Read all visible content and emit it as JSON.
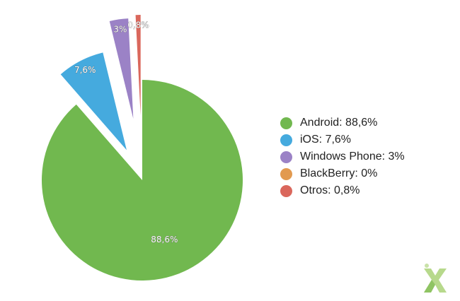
{
  "chart_data": {
    "type": "pie",
    "slices": [
      {
        "name": "Android",
        "value": 88.6,
        "label": "88,6%",
        "color": "#71b84f",
        "explode": false
      },
      {
        "name": "iOS",
        "value": 7.6,
        "label": "7,6%",
        "color": "#45aade",
        "explode": true
      },
      {
        "name": "Windows Phone",
        "value": 3,
        "label": "3%",
        "color": "#9b82c6",
        "explode": true
      },
      {
        "name": "BlackBerry",
        "value": 0,
        "label": "",
        "color": "#e29a4f",
        "explode": true
      },
      {
        "name": "Otros",
        "value": 0.8,
        "label": "0,8%",
        "color": "#da675c",
        "explode": true
      }
    ],
    "legend": {
      "placement": "right",
      "items": [
        {
          "label": "Android: 88,6%",
          "color": "#71b84f"
        },
        {
          "label": "iOS: 7,6%",
          "color": "#45aade"
        },
        {
          "label": "Windows Phone: 3%",
          "color": "#9b82c6"
        },
        {
          "label": "BlackBerry: 0%",
          "color": "#e29a4f"
        },
        {
          "label": "Otros: 0,8%",
          "color": "#da675c"
        }
      ]
    }
  },
  "logo": {
    "icon": "x-logo-icon"
  }
}
